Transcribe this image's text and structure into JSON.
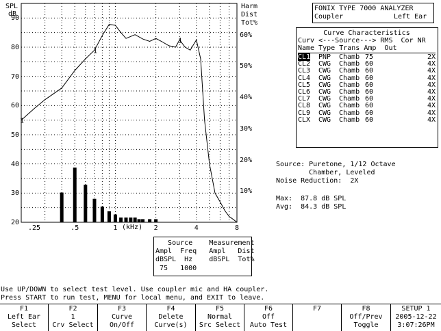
{
  "graph": {
    "y_left_title": "SPL",
    "y_left_unit": "dB",
    "y_right_title_1": "Harm",
    "y_right_title_2": "Dist",
    "y_right_title_3": "Tot%",
    "y_left_ticks": [
      "90",
      "80",
      "70",
      "60",
      "50",
      "40",
      "30",
      "20"
    ],
    "y_right_ticks": [
      "60%",
      "50%",
      "40%",
      "30%",
      "20%",
      "10%"
    ],
    "x_ticks": [
      ".25",
      ".5",
      "1",
      "2",
      "4",
      "8"
    ],
    "x_unit": "(kHz)",
    "curve_marker": "1"
  },
  "chart_data": {
    "type": "line",
    "title": "",
    "xlabel": "(kHz)",
    "ylabel": "SPL dB",
    "xscale": "log",
    "xlim": [
      0.2,
      8
    ],
    "ylim": [
      20,
      95
    ],
    "y2lim": [
      0,
      70
    ],
    "grid": true,
    "series": [
      {
        "name": "1",
        "type": "line",
        "x": [
          0.2,
          0.25,
          0.3,
          0.4,
          0.5,
          0.6,
          0.7,
          0.8,
          0.9,
          1.0,
          1.1,
          1.2,
          1.4,
          1.6,
          1.8,
          2.0,
          2.2,
          2.5,
          2.8,
          3.0,
          3.3,
          3.6,
          4.0,
          4.3,
          4.6,
          5.0,
          5.5,
          6.0,
          6.5,
          7.0,
          7.5,
          8.0
        ],
        "y": [
          55,
          59,
          62,
          66,
          72,
          76,
          79,
          84,
          87.8,
          87.5,
          85,
          83,
          84.3,
          82.8,
          82,
          83,
          82,
          80.5,
          80,
          82.5,
          80,
          79,
          82.5,
          76,
          55,
          40,
          30,
          27,
          24,
          22,
          21,
          20
        ]
      },
      {
        "name": "Harm Dist Tot%",
        "type": "bar",
        "x": [
          0.4,
          0.5,
          0.6,
          0.7,
          0.8,
          0.9,
          1.0,
          1.1,
          1.2,
          1.3,
          1.4,
          1.5,
          1.6,
          1.8,
          2.0
        ],
        "y": [
          9.5,
          17.5,
          12.0,
          7.5,
          5.0,
          3.5,
          2.5,
          1.5,
          1.5,
          1.5,
          1.5,
          1.0,
          1.0,
          1.0,
          1.0
        ]
      }
    ]
  },
  "analyzer": {
    "title": "FONIX TYPE 7000 ANALYZER",
    "coupler": "Coupler",
    "ear": "Left Ear"
  },
  "curves_box": {
    "title": "Curve Characteristics",
    "header1": "Curv <---Source---> RMS  Cor NR",
    "header2": "Name Type Trans Amp  Out",
    "rows": [
      {
        "name": "CL1",
        "type": "PNP",
        "trans": "Chamb",
        "amp": "75",
        "nr": "2X"
      },
      {
        "name": "CL2",
        "type": "CWG",
        "trans": "Chamb",
        "amp": "60",
        "nr": "4X"
      },
      {
        "name": "CL3",
        "type": "CWG",
        "trans": "Chamb",
        "amp": "60",
        "nr": "4X"
      },
      {
        "name": "CL4",
        "type": "CWG",
        "trans": "Chamb",
        "amp": "60",
        "nr": "4X"
      },
      {
        "name": "CL5",
        "type": "CWG",
        "trans": "Chamb",
        "amp": "60",
        "nr": "4X"
      },
      {
        "name": "CL6",
        "type": "CWG",
        "trans": "Chamb",
        "amp": "60",
        "nr": "4X"
      },
      {
        "name": "CL7",
        "type": "CWG",
        "trans": "Chamb",
        "amp": "60",
        "nr": "4X"
      },
      {
        "name": "CL8",
        "type": "CWG",
        "trans": "Chamb",
        "amp": "60",
        "nr": "4X"
      },
      {
        "name": "CL9",
        "type": "CWG",
        "trans": "Chamb",
        "amp": "60",
        "nr": "4X"
      },
      {
        "name": "CLX",
        "type": "CWG",
        "trans": "Chamb",
        "amp": "60",
        "nr": "4X"
      }
    ]
  },
  "info": {
    "source_line1": "Source: Puretone, 1/12 Octave",
    "source_line2": "        Chamber, Leveled",
    "noise": "Noise Reduction:  2X",
    "max": "Max:  87.8 dB SPL",
    "avg": "Avg:  84.3 dB SPL"
  },
  "source_box": {
    "line1": "   Source    Measurement",
    "line2": "Ampl  Freq   Ampl   Dist",
    "line3": "dBSPL  Hz    dBSPL  Tot%",
    "line4": " 75   1000"
  },
  "status": {
    "line1": "Use UP/DOWN to select test level. Use coupler mic and HA coupler.",
    "line2": "Press START to run test, MENU for local menu, and EXIT to leave."
  },
  "fkeys": [
    {
      "key": "F1",
      "line1": "Left Ear",
      "line2": "Select"
    },
    {
      "key": "F2",
      "line1": "1",
      "line2": "Crv Select"
    },
    {
      "key": "F3",
      "line1": "Curve",
      "line2": "On/Off"
    },
    {
      "key": "F4",
      "line1": "Delete",
      "line2": "Curve(s)"
    },
    {
      "key": "F5",
      "line1": "Normal",
      "line2": "Src Select"
    },
    {
      "key": "F6",
      "line1": "Off",
      "line2": "Auto Test"
    },
    {
      "key": "F7",
      "line1": "",
      "line2": ""
    },
    {
      "key": "F8",
      "line1": "Off/Prev",
      "line2": "Toggle"
    }
  ],
  "setup": {
    "label": "SETUP 1",
    "date": "2005-12-22",
    "time": "3:07:26PM"
  }
}
